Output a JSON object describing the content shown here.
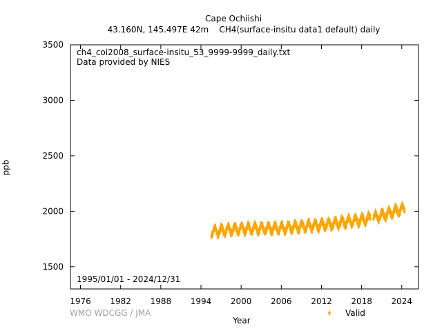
{
  "header": {
    "title": "Cape Ochiishi",
    "subtitle": "43.160N, 145.497E 42m    CH4(surface-insitu data1 default) daily"
  },
  "annotations": {
    "filename": "ch4_coi2008_surface-insitu_53_9999-9999_daily.txt",
    "provider": "Data provided by NIES",
    "date_range": "1995/01/01 - 2024/12/31"
  },
  "footer": {
    "credit": "WMO WDCGG / JMA"
  },
  "colors": {
    "series": "#ffa500",
    "credit": "#a0a0a0",
    "axis": "#000000"
  },
  "chart_data": {
    "type": "scatter",
    "title": "Cape Ochiishi",
    "subtitle": "43.160N, 145.497E 42m    CH4(surface-insitu data1 default) daily",
    "xlabel": "Year",
    "ylabel": "ppb",
    "xlim": [
      1974.5,
      2026.5
    ],
    "ylim": [
      1300,
      3500
    ],
    "xticks": [
      1976,
      1982,
      1988,
      1994,
      2000,
      2006,
      2012,
      2018,
      2024
    ],
    "yticks": [
      1500,
      2000,
      2500,
      3000,
      3500
    ],
    "grid": false,
    "legend_position": "bottom-right",
    "series": [
      {
        "name": "Valid",
        "marker": "diamond",
        "color": "#ffa500",
        "x": [
          1995.5,
          1996.5,
          1997.5,
          1998.5,
          1999.5,
          2000.5,
          2001.5,
          2002.5,
          2003.5,
          2004.5,
          2005.5,
          2006.5,
          2007.5,
          2008.5,
          2009.5,
          2010.5,
          2011.5,
          2012.5,
          2013.5,
          2014.5,
          2015.5,
          2016.5,
          2017.5,
          2018.5,
          2019.5,
          2020.5,
          2021.5,
          2022.5,
          2023.5,
          2024.5
        ],
        "y": [
          1815,
          1822,
          1828,
          1836,
          1840,
          1842,
          1843,
          1845,
          1847,
          1846,
          1847,
          1849,
          1855,
          1861,
          1865,
          1870,
          1874,
          1879,
          1884,
          1893,
          1904,
          1912,
          1918,
          1928,
          1937,
          1955,
          1970,
          1990,
          2010,
          2025
        ],
        "seasonal_amplitude_ppb": 40
      }
    ]
  }
}
